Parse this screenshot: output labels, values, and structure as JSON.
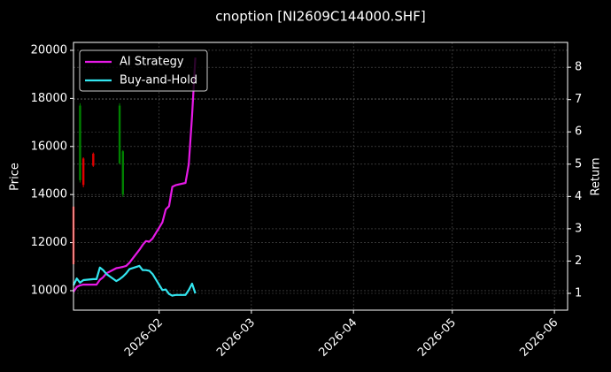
{
  "chart_data": {
    "type": "candlestick",
    "title": "cnoption [NI2609C144000.SHF]",
    "y_label": "Price",
    "y2_label": "Return",
    "x": [
      "2026-01-06",
      "2026-01-07",
      "2026-01-08",
      "2026-01-09",
      "2026-01-12",
      "2026-01-13",
      "2026-01-14",
      "2026-01-15",
      "2026-01-16",
      "2026-01-19",
      "2026-01-20",
      "2026-01-21",
      "2026-01-22",
      "2026-01-23",
      "2026-01-26",
      "2026-01-27",
      "2026-01-28",
      "2026-01-29",
      "2026-01-30",
      "2026-02-02",
      "2026-02-03",
      "2026-02-04",
      "2026-02-05",
      "2026-02-06",
      "2026-02-09",
      "2026-02-10",
      "2026-02-11",
      "2026-02-12"
    ],
    "series": [
      {
        "name": "AI Strategy",
        "color": "#e619e6",
        "axis": "y2",
        "values": [
          1.05,
          1.2,
          1.25,
          1.27,
          1.27,
          1.27,
          1.42,
          1.5,
          1.62,
          1.78,
          1.8,
          1.82,
          1.85,
          1.95,
          2.35,
          2.5,
          2.62,
          2.6,
          2.7,
          3.2,
          3.6,
          3.7,
          4.3,
          4.35,
          4.42,
          5.0,
          6.5,
          8.3
        ]
      },
      {
        "name": "Buy-and-Hold",
        "color": "#33e6f0",
        "axis": "y2",
        "values": [
          1.25,
          1.46,
          1.33,
          1.41,
          1.44,
          1.44,
          1.8,
          1.72,
          1.6,
          1.38,
          1.44,
          1.52,
          1.62,
          1.75,
          1.85,
          1.72,
          1.72,
          1.7,
          1.6,
          1.1,
          1.12,
          0.98,
          0.93,
          0.95,
          0.95,
          1.1,
          1.3,
          1.0
        ]
      }
    ],
    "candles": {
      "x": [
        "2026-01-06",
        "2026-01-08",
        "2026-01-09",
        "2026-01-12",
        "2026-01-20",
        "2026-01-21"
      ],
      "open": [
        13500,
        14600,
        15500,
        15700,
        15300,
        14000
      ],
      "high": [
        13640,
        17800,
        15550,
        15750,
        17800,
        15850
      ],
      "low": [
        11000,
        14500,
        14300,
        15150,
        15250,
        13900
      ],
      "close": [
        11100,
        17700,
        14400,
        15200,
        17700,
        15800
      ],
      "up_color": "#008000",
      "down_color": "#e00000"
    },
    "xlim": [
      "2026-01-06",
      "2026-06-05"
    ],
    "xticks": [
      {
        "value": "2026-02-01",
        "label": "2026-02"
      },
      {
        "value": "2026-03-01",
        "label": "2026-03"
      },
      {
        "value": "2026-04-01",
        "label": "2026-04"
      },
      {
        "value": "2026-05-01",
        "label": "2026-05"
      },
      {
        "value": "2026-06-01",
        "label": "2026-06"
      }
    ],
    "ylim": [
      9190,
      20330
    ],
    "yticks": [
      10000,
      12000,
      14000,
      16000,
      18000,
      20000
    ],
    "y2lim": [
      0.48,
      8.77
    ],
    "y2ticks": [
      1,
      2,
      3,
      4,
      5,
      6,
      7,
      8
    ],
    "grid": true,
    "legend": "upper-left"
  }
}
